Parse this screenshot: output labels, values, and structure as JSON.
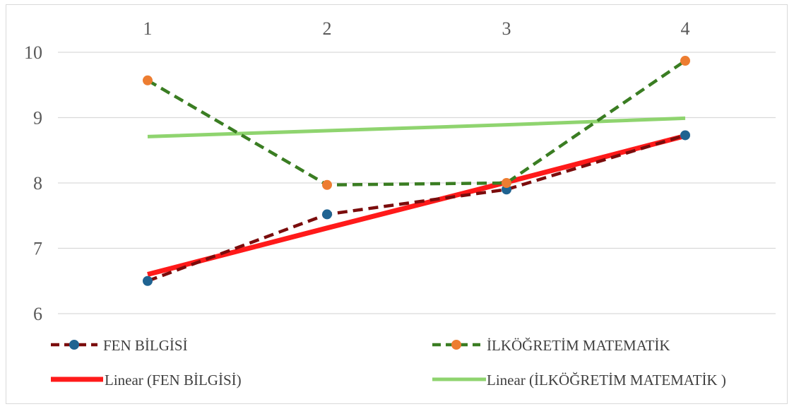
{
  "chart_data": {
    "type": "line",
    "categories": [
      "1",
      "2",
      "3",
      "4"
    ],
    "ylim": [
      6,
      10
    ],
    "yticks": [
      "6",
      "7",
      "8",
      "9",
      "10"
    ],
    "grid": true,
    "legend_position": "bottom",
    "title": "",
    "xlabel": "",
    "ylabel": "",
    "series": [
      {
        "name": "FEN BİLGİSİ",
        "values": [
          6.5,
          7.52,
          7.9,
          8.73
        ],
        "line_color": "#7b0c0c",
        "marker_color": "#1f6391",
        "line_style": "dashed"
      },
      {
        "name": "İLKÖĞRETİM MATEMATİK",
        "values": [
          9.57,
          7.97,
          8.0,
          9.87
        ],
        "line_color": "#3a7d22",
        "marker_color": "#ed7d31",
        "line_style": "dashed"
      }
    ],
    "trendlines": [
      {
        "name": "Linear (FEN BİLGİSİ)",
        "values": [
          6.6,
          7.31,
          8.01,
          8.72
        ],
        "color": "#ff1a1a",
        "line_style": "solid"
      },
      {
        "name": "Linear (İLKÖĞRETİM MATEMATİK )",
        "values": [
          8.71,
          8.8,
          8.89,
          8.99
        ],
        "color": "#8fd46f",
        "line_style": "solid"
      }
    ]
  }
}
